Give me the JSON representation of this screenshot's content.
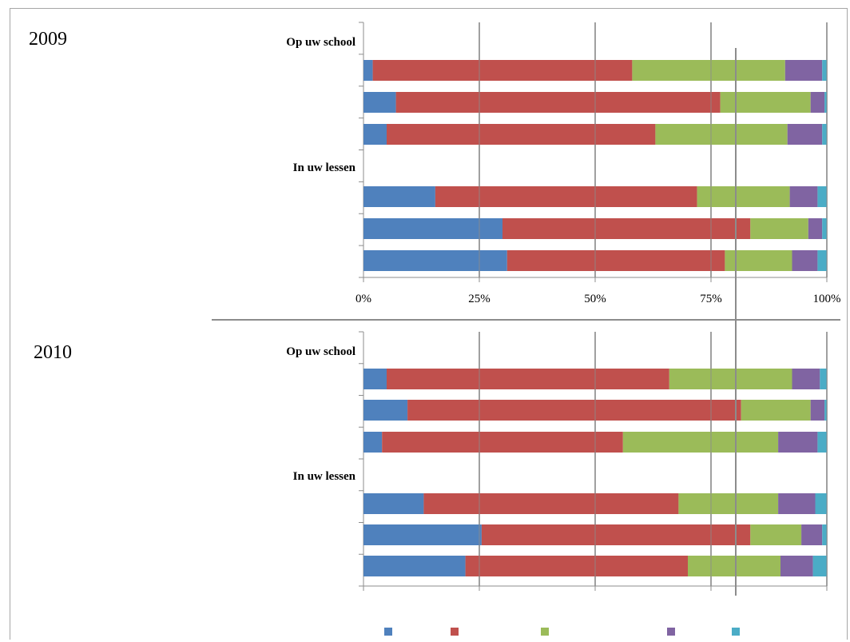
{
  "chart_data": {
    "type": "bar",
    "stacked": "percent",
    "orientation": "horizontal",
    "xlim": [
      0,
      100
    ],
    "x_ticks": [
      "0%",
      "25%",
      "50%",
      "75%",
      "100%"
    ],
    "grid": true,
    "legend_position": "bottom",
    "legend_labels": [
      "",
      "",
      "",
      "",
      ""
    ],
    "colors": [
      "#4f81bd",
      "#c0504d",
      "#9bbb59",
      "#8064a2",
      "#4bacc6"
    ],
    "panels": [
      {
        "year": "2009",
        "sections": [
          {
            "label": "Op uw school",
            "bars": [
              [
                2,
                56,
                33,
                8,
                1
              ],
              [
                7,
                70,
                19.5,
                3,
                0.5
              ],
              [
                5,
                58,
                28.5,
                7.5,
                1
              ]
            ]
          },
          {
            "label": "In uw lessen",
            "bars": [
              [
                15.5,
                56.5,
                20,
                6,
                2
              ],
              [
                30,
                53.5,
                12.5,
                3,
                1
              ],
              [
                31,
                47,
                14.5,
                5.5,
                2
              ]
            ]
          }
        ]
      },
      {
        "year": "2010",
        "sections": [
          {
            "label": "Op uw school",
            "bars": [
              [
                5,
                61,
                26.5,
                6,
                1.5
              ],
              [
                9.5,
                72,
                15,
                3,
                0.5
              ],
              [
                4,
                52,
                33.5,
                8.5,
                2
              ]
            ]
          },
          {
            "label": "In uw lessen",
            "bars": [
              [
                13,
                55,
                21.5,
                8,
                2.5
              ],
              [
                25.5,
                58,
                11,
                4.5,
                1
              ],
              [
                22,
                48,
                20,
                7,
                3
              ]
            ]
          }
        ]
      }
    ]
  }
}
